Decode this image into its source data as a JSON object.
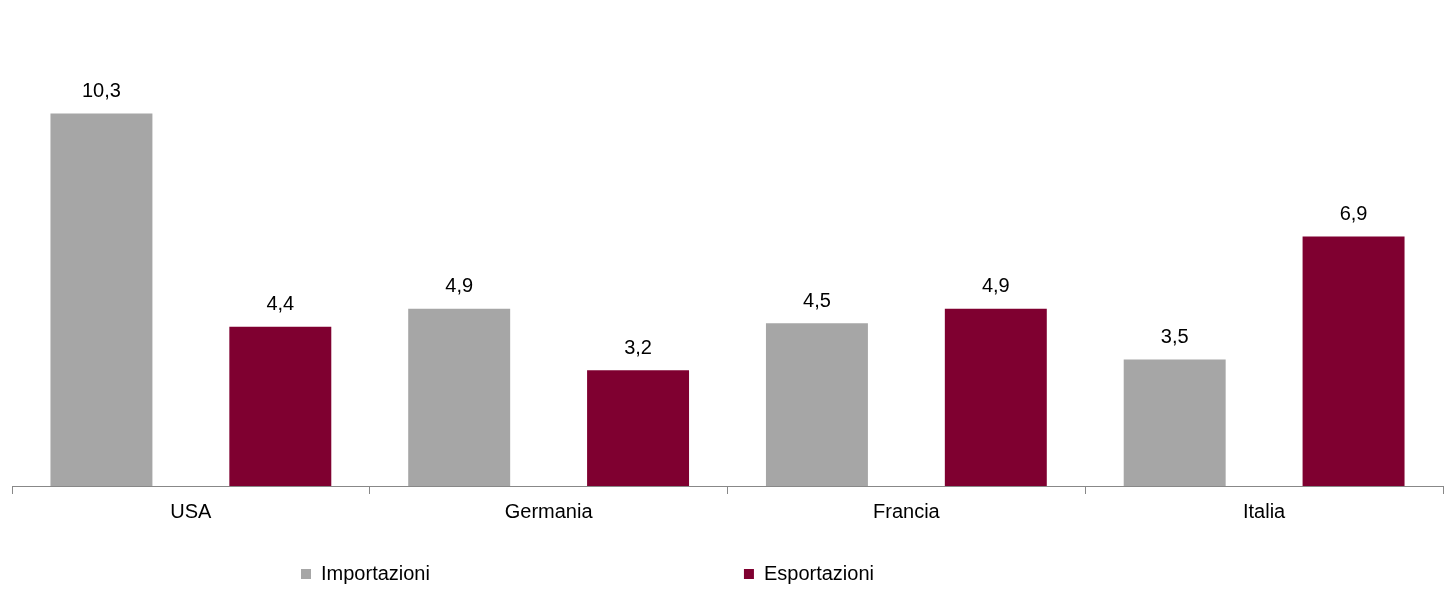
{
  "chart_data": {
    "type": "bar",
    "categories": [
      "USA",
      "Germania",
      "Francia",
      "Italia"
    ],
    "series": [
      {
        "name": "Importazioni",
        "color": "#a6a6a6",
        "values": [
          10.3,
          4.9,
          4.5,
          3.5
        ],
        "value_labels": [
          "10,3",
          "4,9",
          "4,5",
          "3,5"
        ]
      },
      {
        "name": "Esportazioni",
        "color": "#7f0030",
        "values": [
          4.4,
          3.2,
          4.9,
          6.9
        ],
        "value_labels": [
          "4,4",
          "3,2",
          "4,9",
          "6,9"
        ]
      }
    ],
    "legend": "bottom",
    "grid": false
  }
}
